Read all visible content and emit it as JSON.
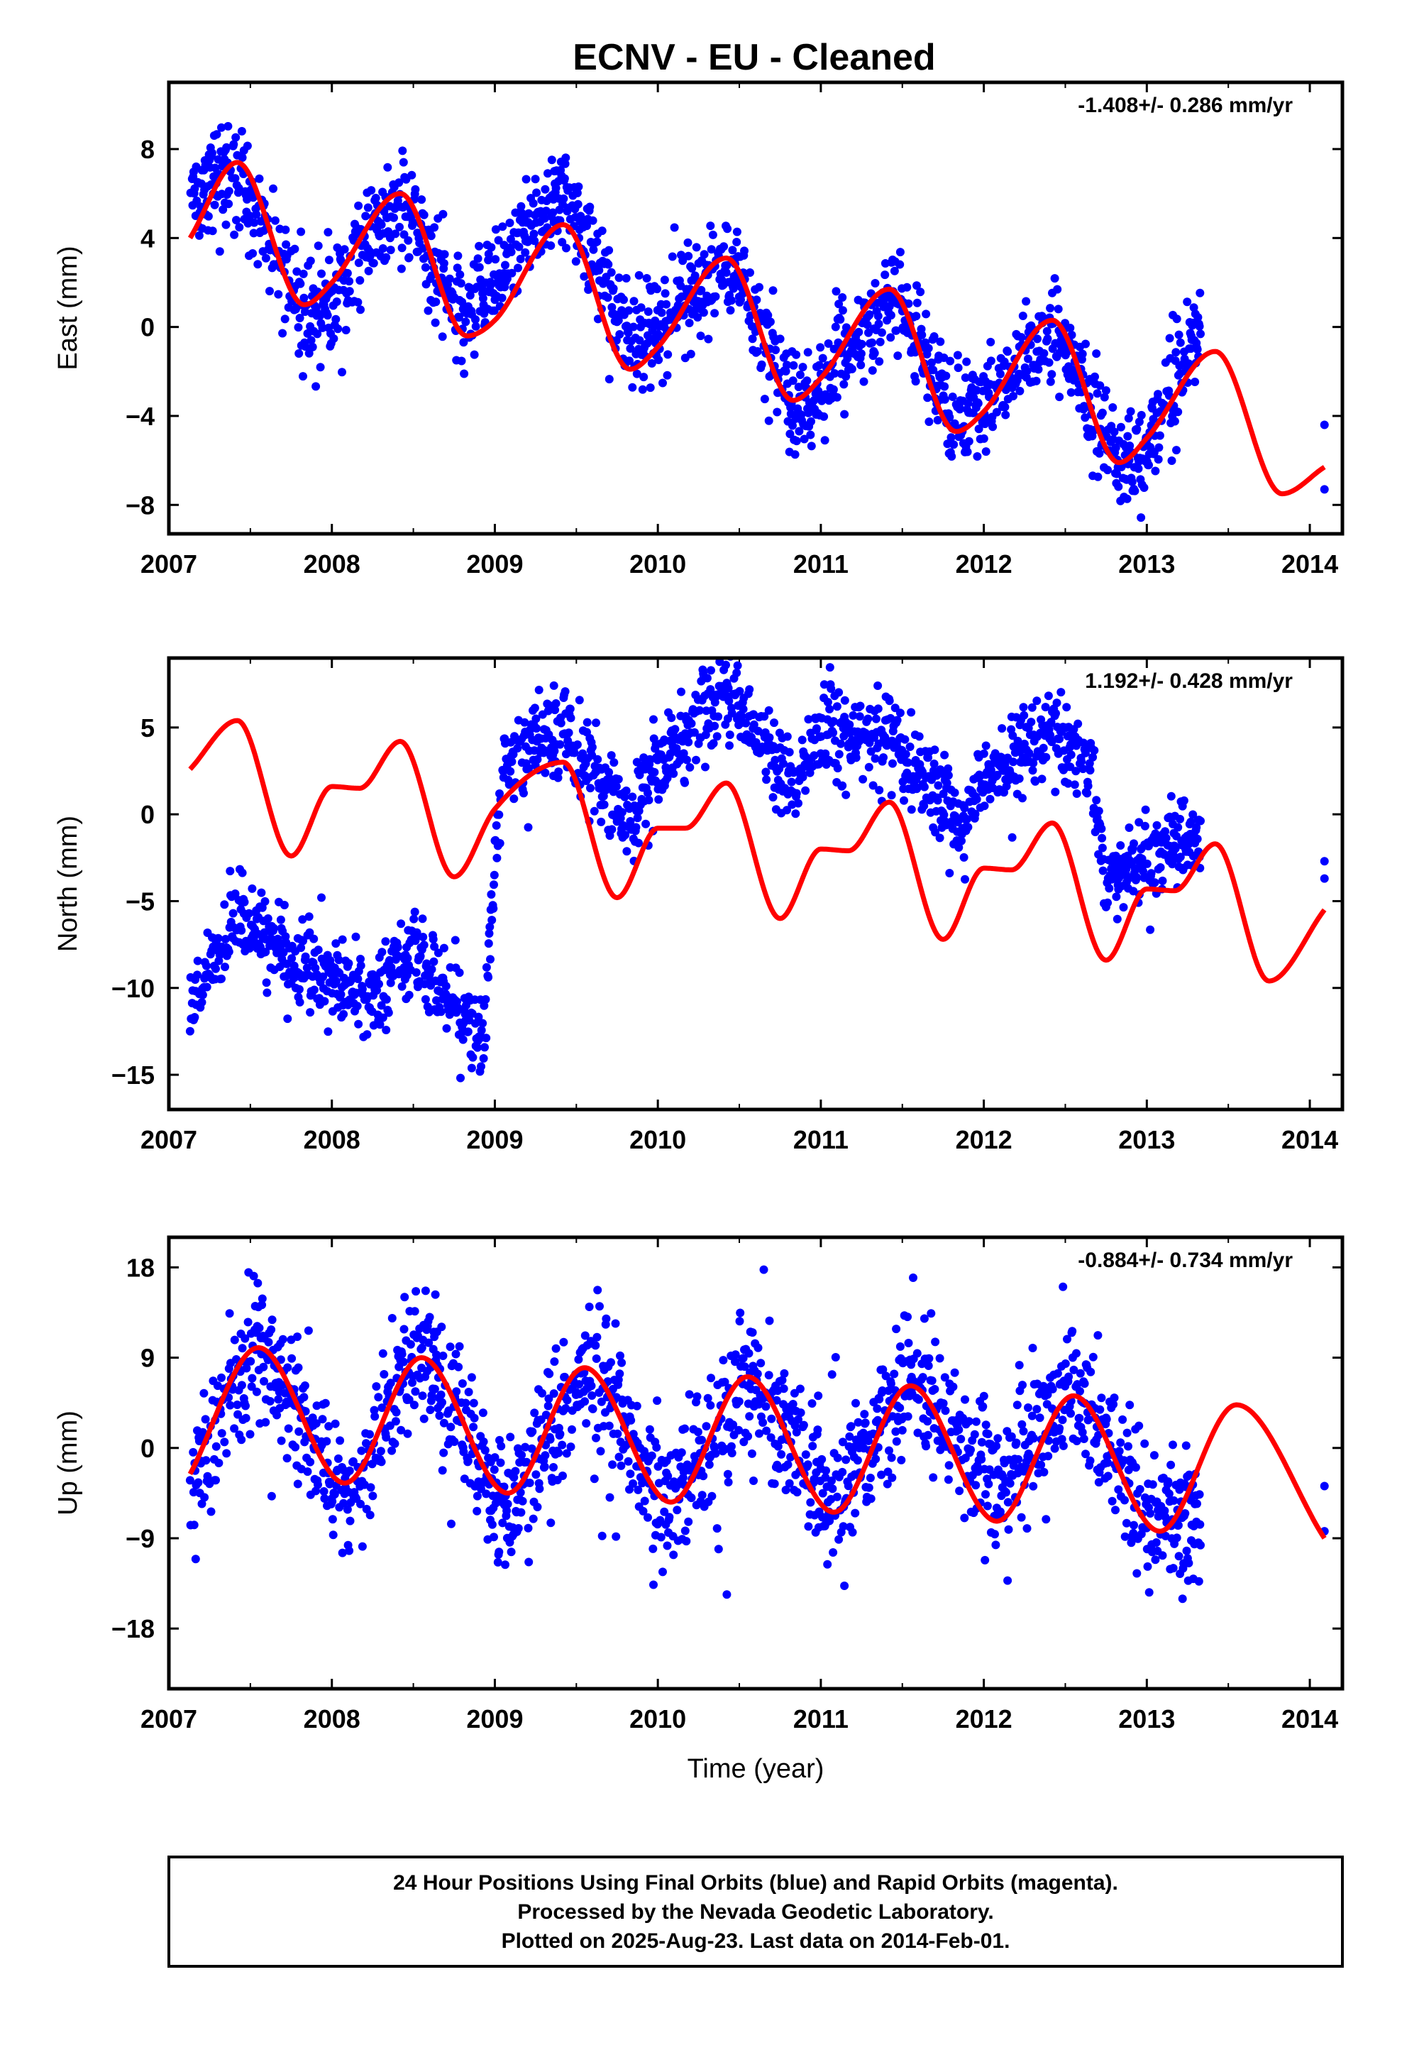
{
  "title": "ECNV  - EU - Cleaned",
  "footer": {
    "lines": [
      "24 Hour Positions Using Final Orbits (blue) and Rapid Orbits (magenta).",
      "Processed by the Nevada Geodetic Laboratory.",
      "Plotted on 2025-Aug-23. Last data on 2014-Feb-01."
    ]
  },
  "colors": {
    "points": "#0000ff",
    "model": "#ff0000",
    "frame": "#000000"
  },
  "chart_data": [
    {
      "type": "scatter",
      "component": "east",
      "ylabel": "East (mm)",
      "xlabel": "",
      "rate_label": "-1.408+/- 0.286 mm/yr",
      "xlim": [
        2007.0,
        2014.2
      ],
      "ylim": [
        -9.3,
        11.0
      ],
      "xticks": [
        2007,
        2008,
        2009,
        2010,
        2011,
        2012,
        2013,
        2014
      ],
      "yticks": [
        -8,
        -4,
        0,
        4,
        8
      ],
      "ytick_labels": [
        "−8",
        "−4",
        "0",
        "4",
        "8"
      ],
      "data_span": [
        2007.13,
        2013.33
      ],
      "late_points": [
        [
          2014.09,
          -4.4
        ],
        [
          2014.09,
          -7.3
        ]
      ],
      "model": {
        "name": "",
        "x": [
          2007.13,
          2007.42,
          2007.83,
          2008.0,
          2008.42,
          2008.83,
          2009.0,
          2009.42,
          2009.83,
          2010.0,
          2010.42,
          2010.83,
          2011.0,
          2011.42,
          2011.83,
          2012.0,
          2012.42,
          2012.83,
          2013.0,
          2013.42,
          2013.83,
          2014.09
        ],
        "y": [
          4.0,
          7.4,
          1.0,
          2.0,
          6.0,
          -0.4,
          0.3,
          4.6,
          -1.9,
          -0.9,
          3.1,
          -3.3,
          -2.3,
          1.7,
          -4.7,
          -3.8,
          0.3,
          -6.1,
          -5.0,
          -1.1,
          -7.5,
          -6.3
        ]
      },
      "series": [
        {
          "name": "",
          "x": [
            2007.13,
            2007.42,
            2007.83,
            2008.0,
            2008.42,
            2008.83,
            2009.0,
            2009.42,
            2009.83,
            2010.0,
            2010.42,
            2010.83,
            2011.0,
            2011.42,
            2011.83,
            2012.0,
            2012.42,
            2012.83,
            2013.0,
            2013.33
          ],
          "y": [
            5.5,
            7.2,
            0.2,
            1.2,
            5.7,
            0.1,
            2.5,
            6.2,
            -0.6,
            0.0,
            3.0,
            -3.4,
            -2.9,
            1.5,
            -4.0,
            -3.3,
            0.2,
            -6.2,
            -5.6,
            0.2
          ]
        }
      ]
    },
    {
      "type": "scatter",
      "component": "north",
      "ylabel": "North (mm)",
      "xlabel": "",
      "rate_label": "1.192+/- 0.428 mm/yr",
      "xlim": [
        2007.0,
        2014.2
      ],
      "ylim": [
        -17.0,
        9.0
      ],
      "xticks": [
        2007,
        2008,
        2009,
        2010,
        2011,
        2012,
        2013,
        2014
      ],
      "yticks": [
        -15,
        -10,
        -5,
        0,
        5
      ],
      "ytick_labels": [
        "−15",
        "−10",
        "−5",
        "0",
        "5"
      ],
      "data_span": [
        2007.13,
        2013.33
      ],
      "late_points": [
        [
          2014.09,
          -2.7
        ],
        [
          2014.09,
          -3.7
        ]
      ],
      "model": {
        "name": "",
        "x": [
          2007.13,
          2007.42,
          2007.75,
          2008.0,
          2008.17,
          2008.42,
          2008.75,
          2009.0,
          2009.42,
          2009.75,
          2010.0,
          2010.17,
          2010.42,
          2010.75,
          2011.0,
          2011.17,
          2011.42,
          2011.75,
          2012.0,
          2012.17,
          2012.42,
          2012.75,
          2013.0,
          2013.17,
          2013.42,
          2013.75,
          2014.09
        ],
        "y": [
          2.6,
          5.4,
          -2.4,
          1.6,
          1.5,
          4.2,
          -3.6,
          0.3,
          3.0,
          -4.8,
          -0.8,
          -0.8,
          1.8,
          -6.0,
          -2.0,
          -2.1,
          0.7,
          -7.2,
          -3.1,
          -3.2,
          -0.5,
          -8.4,
          -4.3,
          -4.4,
          -1.7,
          -9.6,
          -5.5
        ]
      },
      "series": [
        {
          "name": "",
          "x": [
            2007.13,
            2007.42,
            2007.75,
            2008.0,
            2008.25,
            2008.5,
            2008.83,
            2008.96,
            2009.05,
            2009.42,
            2009.83,
            2010.0,
            2010.42,
            2010.83,
            2011.0,
            2011.42,
            2011.83,
            2012.0,
            2012.42,
            2012.67,
            2012.75,
            2013.0,
            2013.33
          ],
          "y": [
            -11.0,
            -6.0,
            -8.5,
            -9.5,
            -10.5,
            -8.0,
            -12.0,
            -12.5,
            3.0,
            4.8,
            -0.5,
            3.0,
            7.0,
            1.5,
            4.5,
            4.5,
            -0.5,
            1.5,
            5.0,
            2.0,
            -4.0,
            -2.5,
            -1.0
          ]
        }
      ]
    },
    {
      "type": "scatter",
      "component": "up",
      "ylabel": "Up (mm)",
      "xlabel": "Time (year)",
      "rate_label": "-0.884+/- 0.734 mm/yr",
      "xlim": [
        2007.0,
        2014.2
      ],
      "ylim": [
        -24.0,
        21.0
      ],
      "xticks": [
        2007,
        2008,
        2009,
        2010,
        2011,
        2012,
        2013,
        2014
      ],
      "yticks": [
        -18,
        -9,
        0,
        9,
        18
      ],
      "ytick_labels": [
        "−18",
        "−9",
        "0",
        "9",
        "18"
      ],
      "data_span": [
        2007.13,
        2013.33
      ],
      "late_points": [
        [
          2014.09,
          -3.8
        ],
        [
          2014.09,
          -8.3
        ]
      ],
      "model": {
        "name": "",
        "x": [
          2007.13,
          2007.55,
          2008.08,
          2008.55,
          2009.08,
          2009.55,
          2010.08,
          2010.55,
          2011.08,
          2011.55,
          2012.08,
          2012.55,
          2013.08,
          2013.55,
          2014.09
        ],
        "y": [
          -2.6,
          10.0,
          -3.5,
          9.0,
          -4.5,
          8.0,
          -5.4,
          7.1,
          -6.4,
          6.2,
          -7.3,
          5.2,
          -8.3,
          4.3,
          -9.0
        ]
      },
      "series": [
        {
          "name": "",
          "x": [
            2007.13,
            2007.55,
            2008.08,
            2008.55,
            2009.08,
            2009.55,
            2010.08,
            2010.55,
            2011.08,
            2011.55,
            2012.08,
            2012.55,
            2013.08,
            2013.33
          ],
          "y": [
            -4.0,
            11.0,
            -5.0,
            10.0,
            -7.0,
            8.0,
            -6.0,
            7.0,
            -5.0,
            7.0,
            -5.0,
            6.0,
            -8.0,
            -6.0
          ]
        }
      ]
    }
  ]
}
